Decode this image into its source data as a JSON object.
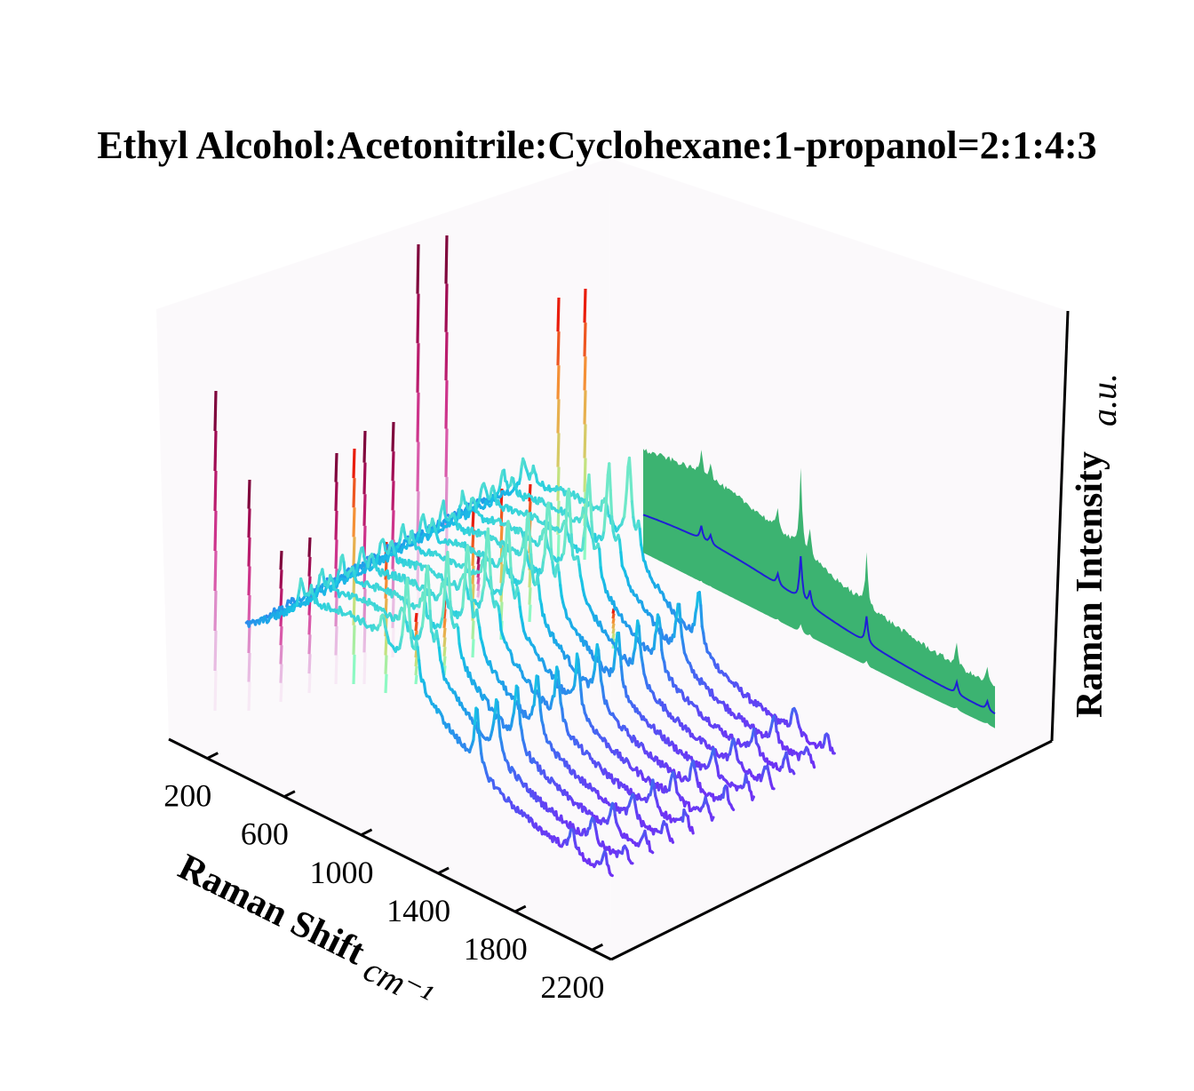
{
  "chart_data": {
    "type": "line",
    "title": "Ethyl Alcohol:Acetonitrile:Cyclohexane:1-propanol=2:1:4:3",
    "xlabel": "Raman Shift",
    "xunit": "cm⁻¹",
    "zlabel": "Raman Intensity",
    "zunit": "a.u.",
    "x_ticks": [
      "200",
      "600",
      "1000",
      "1400",
      "1800",
      "2200"
    ],
    "x_tick_values": [
      200,
      600,
      1000,
      1400,
      1800,
      2200
    ],
    "xlim": [
      0,
      2300
    ],
    "peaks": [
      {
        "position": 380,
        "intensity": 0.28
      },
      {
        "position": 440,
        "intensity": 0.18
      },
      {
        "position": 880,
        "intensity": 0.22
      },
      {
        "position": 1030,
        "intensity": 0.9
      },
      {
        "position": 1090,
        "intensity": 0.3
      },
      {
        "position": 1460,
        "intensity": 0.55
      },
      {
        "position": 2050,
        "intensity": 0.25
      },
      {
        "position": 2250,
        "intensity": 0.18
      }
    ],
    "series_count": 12,
    "mean_spectrum_color": "#1f1fd6",
    "band_color": "#3cb371",
    "line_colormap": [
      "#7b22f5",
      "#3f6df2",
      "#1ea4e8",
      "#19c8e4",
      "#6ee8c8"
    ],
    "spike_colormap": [
      "#ffffff",
      "#e0a6d8",
      "#d6409a",
      "#b0105e",
      "#6e0030"
    ],
    "spike_colormap_alt": [
      "#7fffd4",
      "#c8e07a",
      "#f59a3a",
      "#e60000"
    ],
    "pane_color": "#fbf9fb",
    "view": "3d perspective"
  }
}
